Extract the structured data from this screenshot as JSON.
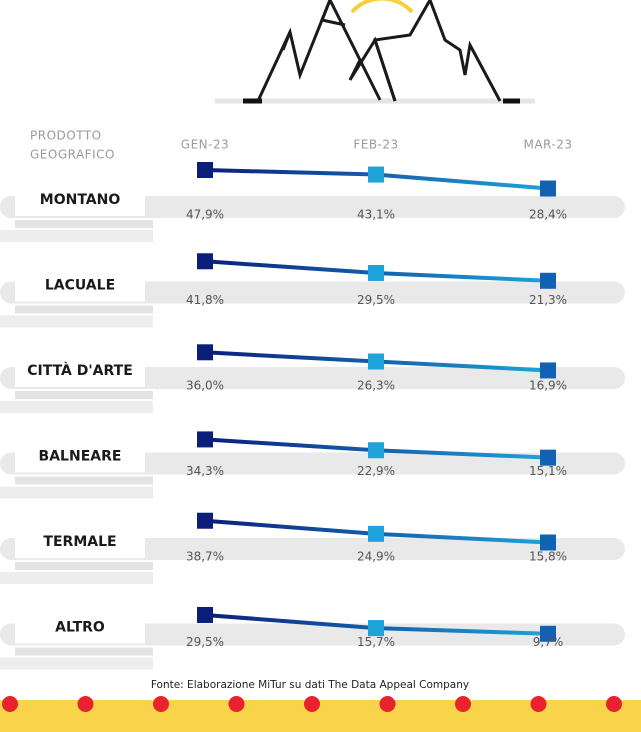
{
  "chart_data": {
    "type": "line",
    "row_header": [
      "PRODOTTO",
      "GEOGRAFICO"
    ],
    "categories": [
      "GEN-23",
      "FEB-23",
      "MAR-23"
    ],
    "ylim": [
      0,
      50
    ],
    "marker_colors": [
      "#0b1e7c",
      "#1ea3da",
      "#1262b4"
    ],
    "line_colors": [
      "#0b1e7c",
      "#1ea3da"
    ],
    "series": [
      {
        "name": "MONTANO",
        "values": [
          47.9,
          43.1,
          28.4
        ],
        "value_labels": [
          "47,9%",
          "43,1%",
          "28,4%"
        ]
      },
      {
        "name": "LACUALE",
        "values": [
          41.8,
          29.5,
          21.3
        ],
        "value_labels": [
          "41,8%",
          "29,5%",
          "21,3%"
        ]
      },
      {
        "name": "CITTÀ D'ARTE",
        "values": [
          36.0,
          26.3,
          16.9
        ],
        "value_labels": [
          "36,0%",
          "26,3%",
          "16,9%"
        ]
      },
      {
        "name": "BALNEARE",
        "values": [
          34.3,
          22.9,
          15.1
        ],
        "value_labels": [
          "34,3%",
          "22,9%",
          "15,1%"
        ]
      },
      {
        "name": "TERMALE",
        "values": [
          38.7,
          24.9,
          15.8
        ],
        "value_labels": [
          "38,7%",
          "24,9%",
          "15,8%"
        ]
      },
      {
        "name": "ALTRO",
        "values": [
          29.5,
          15.7,
          9.7
        ],
        "value_labels": [
          "29,5%",
          "15,7%",
          "9,7%"
        ]
      }
    ],
    "source": "Fonte: Elaborazione MiTur su dati The Data Appeal Company"
  }
}
